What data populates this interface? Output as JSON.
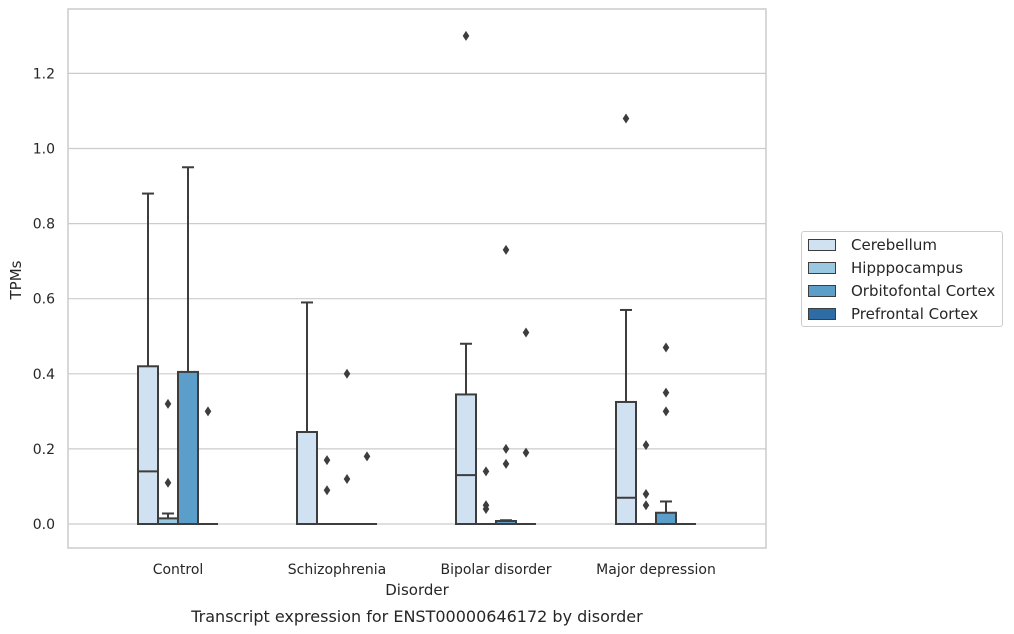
{
  "chart_data": {
    "type": "box",
    "caption": "Transcript expression for ENST00000646172 by disorder",
    "xlabel": "Disorder",
    "ylabel": "TPMs",
    "categories": [
      "Control",
      "Schizophrenia",
      "Bipolar disorder",
      "Major depression"
    ],
    "ylim": [
      -0.065,
      1.34
    ],
    "yticks": [
      "0.0",
      "0.2",
      "0.4",
      "0.6",
      "0.8",
      "1.0",
      "1.2"
    ],
    "ytick_values": [
      0,
      0.2,
      0.4,
      0.6,
      0.8,
      1.0,
      1.2
    ],
    "grid": true,
    "legend_position": "right",
    "series": [
      {
        "name": "Cerebellum",
        "color": "#d0e1f2",
        "boxes": [
          {
            "q1": 0,
            "median": 0.14,
            "q3": 0.42,
            "whislo": 0,
            "whishi": 0.88,
            "fliers": []
          },
          {
            "q1": 0,
            "median": 0,
            "q3": 0.245,
            "whislo": 0,
            "whishi": 0.59,
            "fliers": []
          },
          {
            "q1": 0,
            "median": 0.13,
            "q3": 0.345,
            "whislo": 0,
            "whishi": 0.48,
            "fliers": [
              1.3
            ]
          },
          {
            "q1": 0,
            "median": 0.07,
            "q3": 0.325,
            "whislo": 0,
            "whishi": 0.57,
            "fliers": [
              1.08
            ]
          }
        ]
      },
      {
        "name": "Hipppocampus",
        "color": "#9ac8e0",
        "boxes": [
          {
            "q1": 0,
            "median": 0,
            "q3": 0.015,
            "whislo": 0,
            "whishi": 0.028,
            "fliers": [
              0.11,
              0.32
            ]
          },
          {
            "q1": 0,
            "median": 0,
            "q3": 0,
            "whislo": 0,
            "whishi": 0,
            "fliers": [
              0.09,
              0.17
            ]
          },
          {
            "q1": 0,
            "median": 0,
            "q3": 0,
            "whislo": 0,
            "whishi": 0,
            "fliers": [
              0.04,
              0.05,
              0.14
            ]
          },
          {
            "q1": 0,
            "median": 0,
            "q3": 0,
            "whislo": 0,
            "whishi": 0,
            "fliers": [
              0.05,
              0.08,
              0.21
            ]
          }
        ]
      },
      {
        "name": "Orbitofontal Cortex",
        "color": "#5a9ec9",
        "boxes": [
          {
            "q1": 0,
            "median": 0,
            "q3": 0.405,
            "whislo": 0,
            "whishi": 0.95,
            "fliers": []
          },
          {
            "q1": 0,
            "median": 0,
            "q3": 0,
            "whislo": 0,
            "whishi": 0,
            "fliers": [
              0.12,
              0.4
            ]
          },
          {
            "q1": 0,
            "median": 0,
            "q3": 0.008,
            "whislo": 0,
            "whishi": 0.01,
            "fliers": [
              0.16,
              0.2,
              0.73
            ]
          },
          {
            "q1": 0,
            "median": 0,
            "q3": 0.03,
            "whislo": 0,
            "whishi": 0.06,
            "fliers": [
              0.3,
              0.35,
              0.47
            ]
          }
        ]
      },
      {
        "name": "Prefrontal Cortex",
        "color": "#2d6ca5",
        "boxes": [
          {
            "q1": 0,
            "median": 0,
            "q3": 0,
            "whislo": 0,
            "whishi": 0,
            "fliers": [
              0.3
            ]
          },
          {
            "q1": 0,
            "median": 0,
            "q3": 0,
            "whislo": 0,
            "whishi": 0,
            "fliers": [
              0.18
            ]
          },
          {
            "q1": 0,
            "median": 0,
            "q3": 0,
            "whislo": 0,
            "whishi": 0,
            "fliers": [
              0.19,
              0.51
            ]
          },
          {
            "q1": 0,
            "median": 0,
            "q3": 0,
            "whislo": 0,
            "whishi": 0,
            "fliers": []
          }
        ]
      }
    ]
  }
}
